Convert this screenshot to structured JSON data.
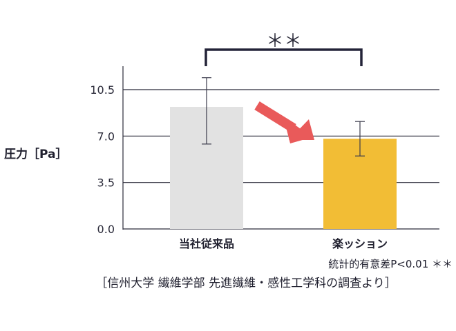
{
  "chart_data": {
    "type": "bar",
    "ylabel": "圧力［Pa］",
    "categories": [
      "当社従来品",
      "楽ッション"
    ],
    "values": [
      9.2,
      6.8
    ],
    "error": [
      [
        6.4,
        11.4
      ],
      [
        5.5,
        8.1
      ]
    ],
    "yticks": [
      "0.0",
      "3.5",
      "7.0",
      "10.5"
    ],
    "ylim": [
      0,
      10.5
    ],
    "bar_colors": [
      "#e2e2e2",
      "#f2bd35"
    ],
    "grid": true,
    "significance": "＊＊",
    "note": "統計的有意差P<0.01 ＊＊",
    "arrow_color": "#e95a5a"
  },
  "source": "［信州大学 繊維学部 先進繊維・感性工学科の調査より］"
}
